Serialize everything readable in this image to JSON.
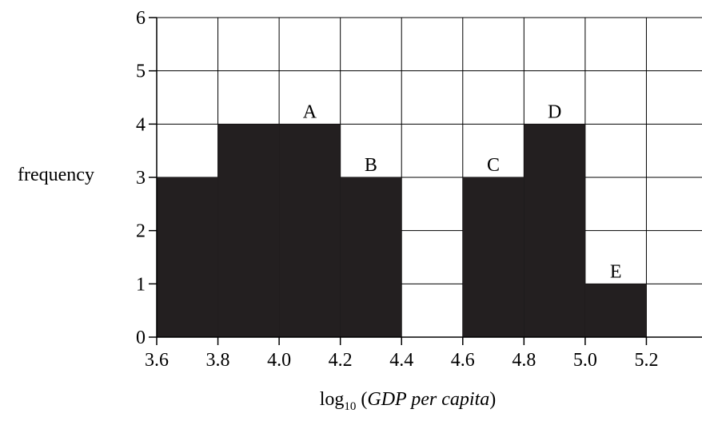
{
  "chart_data": {
    "type": "bar",
    "subtype": "histogram",
    "bins": [
      {
        "start": 3.6,
        "end": 3.8,
        "value": 3,
        "label": ""
      },
      {
        "start": 3.8,
        "end": 4.0,
        "value": 4,
        "label": ""
      },
      {
        "start": 4.0,
        "end": 4.2,
        "value": 4,
        "label": "A"
      },
      {
        "start": 4.2,
        "end": 4.4,
        "value": 3,
        "label": "B"
      },
      {
        "start": 4.4,
        "end": 4.6,
        "value": 0,
        "label": ""
      },
      {
        "start": 4.6,
        "end": 4.8,
        "value": 3,
        "label": "C"
      },
      {
        "start": 4.8,
        "end": 5.0,
        "value": 4,
        "label": "D"
      },
      {
        "start": 5.0,
        "end": 5.2,
        "value": 1,
        "label": "E"
      }
    ],
    "xlabel_prefix": "log",
    "xlabel_subscript": "10",
    "xlabel_open": " (",
    "xlabel_italic": "GDP per capita",
    "xlabel_close": ")",
    "ylabel": "frequency",
    "xlim": [
      3.6,
      5.4
    ],
    "ylim": [
      0,
      6
    ],
    "xticks": [
      3.6,
      3.8,
      4.0,
      4.2,
      4.4,
      4.6,
      4.8,
      5.0,
      5.2
    ],
    "xtick_labels": [
      "3.6",
      "3.8",
      "4.0",
      "4.2",
      "4.4",
      "4.6",
      "4.8",
      "5.0",
      "5.2"
    ],
    "yticks": [
      0,
      1,
      2,
      3,
      4,
      5,
      6
    ],
    "ytick_labels": [
      "0",
      "1",
      "2",
      "3",
      "4",
      "5",
      "6"
    ],
    "grid": true,
    "bar_color": "#231f20",
    "grid_color": "#000000"
  }
}
